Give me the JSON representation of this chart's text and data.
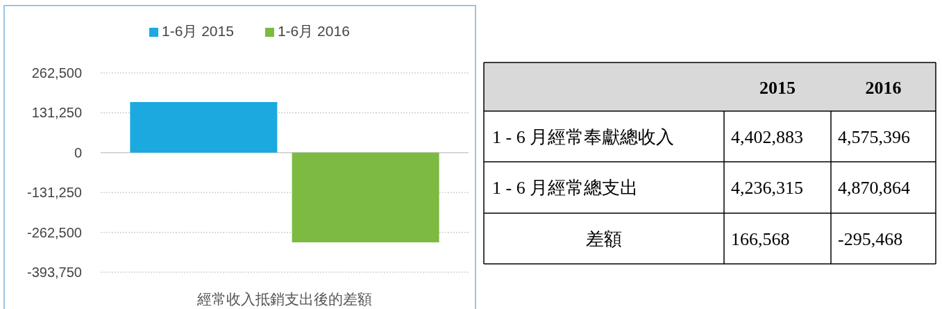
{
  "chart_data": [
    {
      "type": "bar",
      "categories": [
        null
      ],
      "xlabel": "經常收入抵銷支出後的差額",
      "series": [
        {
          "name": "1-6月 2015",
          "color": "#1ba9e0",
          "values": [
            166568
          ]
        },
        {
          "name": "1-6月 2016",
          "color": "#7cba42",
          "values": [
            -295468
          ]
        }
      ],
      "ylim": [
        -393750,
        262500
      ],
      "yticks": [
        {
          "value": -393750,
          "label": "-393,750"
        },
        {
          "value": -262500,
          "label": "-262,500"
        },
        {
          "value": -131250,
          "label": "-131,250"
        },
        0,
        {
          "value": 131250,
          "label": "131,250"
        },
        {
          "value": 262500,
          "label": "262,500"
        }
      ],
      "grid": "y",
      "legend": "top"
    },
    {
      "type": "other",
      "categories": [
        "2015",
        "2016"
      ],
      "y_categories": [
        "1 - 6 月經常奉獻總收入",
        "1 - 6 月經常總支出",
        "差額"
      ],
      "cell_labels": [
        [
          "4,402,883",
          "4,575,396"
        ],
        [
          "4,236,315",
          "4,870,864"
        ],
        [
          "166,568",
          "-295,468"
        ]
      ]
    }
  ]
}
